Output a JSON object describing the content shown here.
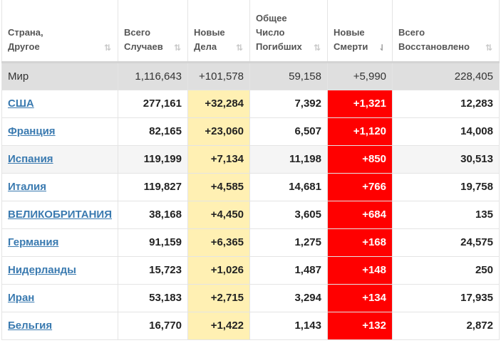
{
  "headers": [
    {
      "line1": "Страна,",
      "line2": "Другое",
      "line3": ""
    },
    {
      "line1": "Всего",
      "line2": "Случаев",
      "line3": ""
    },
    {
      "line1": "Новые",
      "line2": "Дела",
      "line3": ""
    },
    {
      "line1": "Общее",
      "line2": "Число",
      "line3": "Погибших"
    },
    {
      "line1": "Новые",
      "line2": "Смерти",
      "line3": ""
    },
    {
      "line1": "Всего",
      "line2": "Восстановлено",
      "line3": ""
    }
  ],
  "sort_icons": {
    "inactive": "⇅",
    "active": "⇃"
  },
  "world": {
    "country": "Мир",
    "total_cases": "1,116,643",
    "new_cases": "+101,578",
    "total_deaths": "59,158",
    "new_deaths": "+5,990",
    "total_recovered": "228,405"
  },
  "rows": [
    {
      "country": "США",
      "total_cases": "277,161",
      "new_cases": "+32,284",
      "total_deaths": "7,392",
      "new_deaths": "+1,321",
      "total_recovered": "12,283"
    },
    {
      "country": "Франция",
      "total_cases": "82,165",
      "new_cases": "+23,060",
      "total_deaths": "6,507",
      "new_deaths": "+1,120",
      "total_recovered": "14,008"
    },
    {
      "country": "Испания",
      "total_cases": "119,199",
      "new_cases": "+7,134",
      "total_deaths": "11,198",
      "new_deaths": "+850",
      "total_recovered": "30,513"
    },
    {
      "country": "Италия",
      "total_cases": "119,827",
      "new_cases": "+4,585",
      "total_deaths": "14,681",
      "new_deaths": "+766",
      "total_recovered": "19,758"
    },
    {
      "country": "ВЕЛИКОБРИТАНИЯ",
      "total_cases": "38,168",
      "new_cases": "+4,450",
      "total_deaths": "3,605",
      "new_deaths": "+684",
      "total_recovered": "135"
    },
    {
      "country": "Германия",
      "total_cases": "91,159",
      "new_cases": "+6,365",
      "total_deaths": "1,275",
      "new_deaths": "+168",
      "total_recovered": "24,575"
    },
    {
      "country": "Нидерланды",
      "total_cases": "15,723",
      "new_cases": "+1,026",
      "total_deaths": "1,487",
      "new_deaths": "+148",
      "total_recovered": "250"
    },
    {
      "country": "Иран",
      "total_cases": "53,183",
      "new_cases": "+2,715",
      "total_deaths": "3,294",
      "new_deaths": "+134",
      "total_recovered": "17,935"
    },
    {
      "country": "Бельгия",
      "total_cases": "16,770",
      "new_cases": "+1,422",
      "total_deaths": "1,143",
      "new_deaths": "+132",
      "total_recovered": "2,872"
    }
  ],
  "colors": {
    "new_cases_bg": "#fff0b3",
    "new_deaths_bg": "#ff0000",
    "world_row_bg": "#dfdfdf",
    "link": "#3a7ab0"
  }
}
